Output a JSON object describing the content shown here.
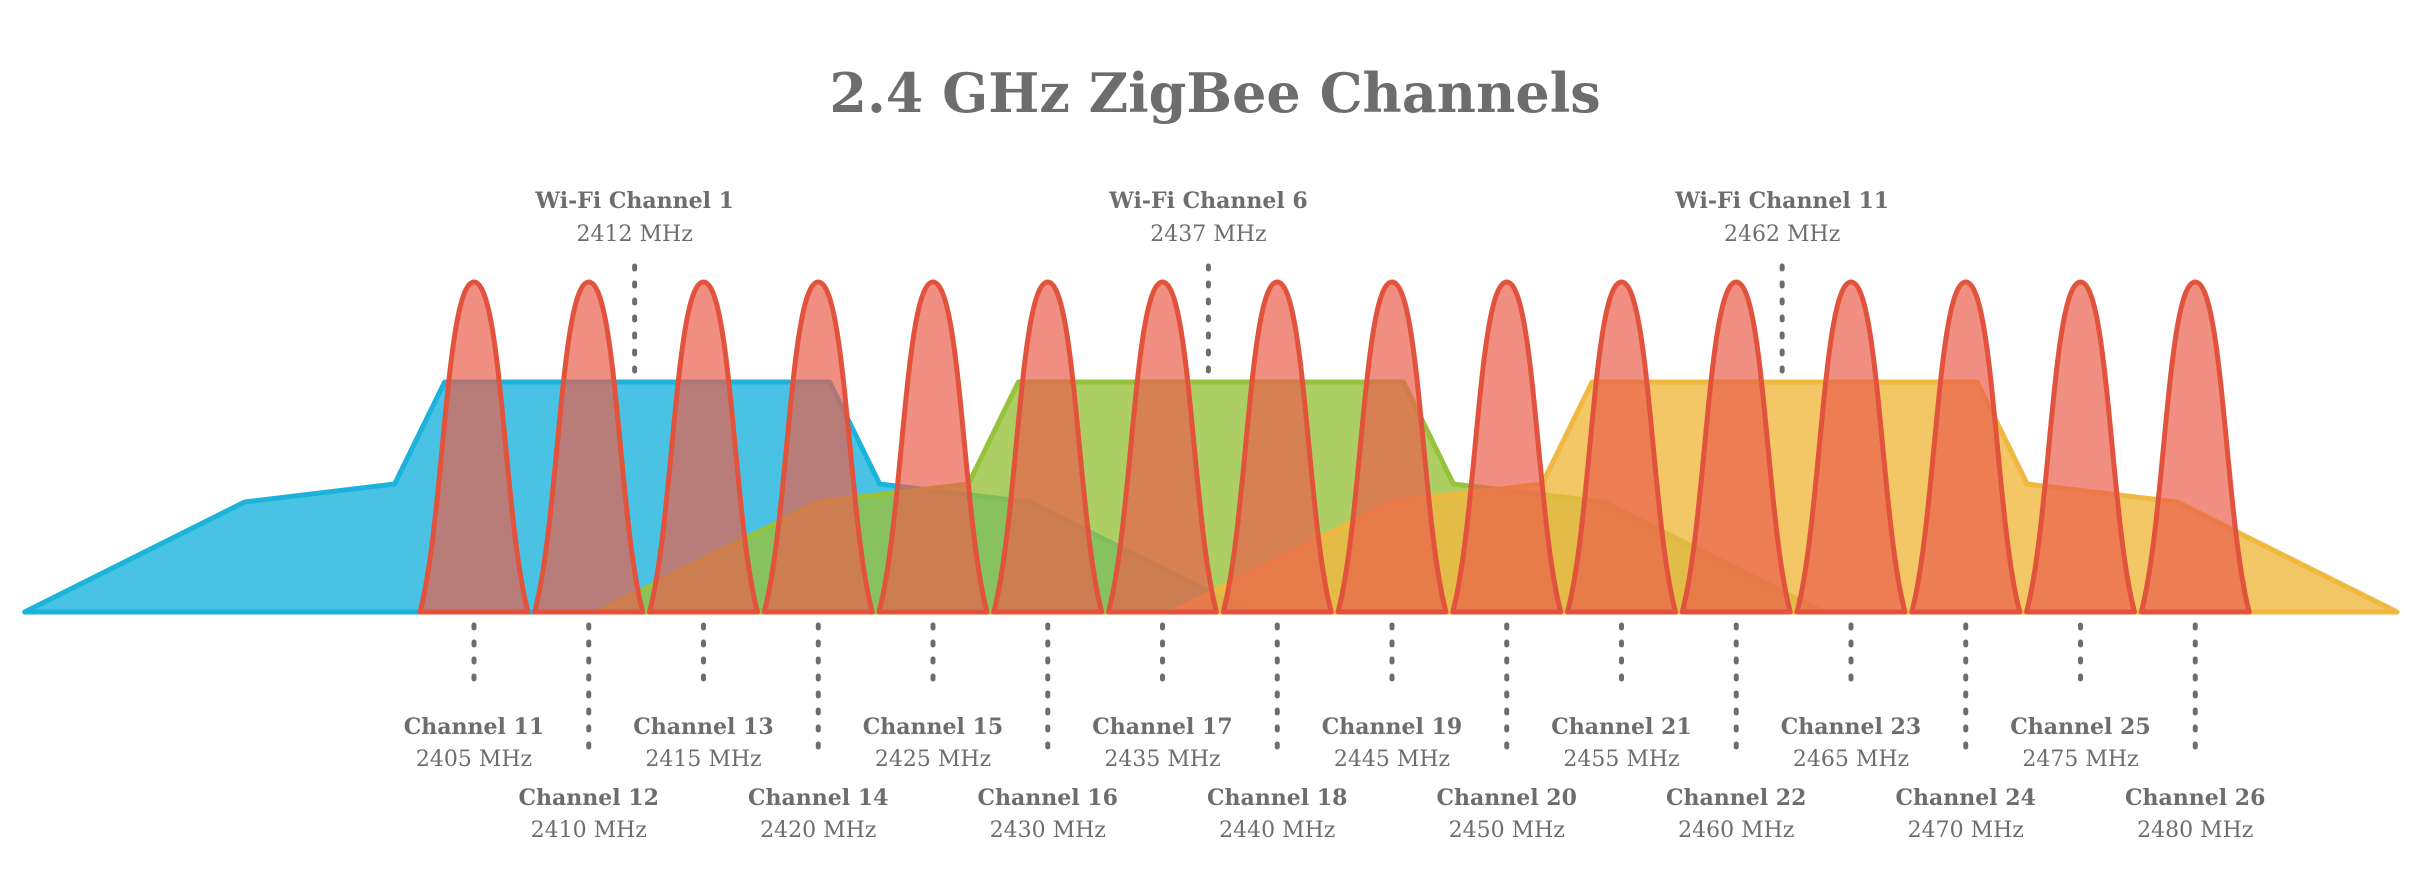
{
  "title": "2.4 GHz ZigBee Channels",
  "colors": {
    "zigbee_fill": "#e9604b",
    "zigbee_stroke": "#e2533e",
    "wifi_1": "#1bb3dc",
    "wifi_6": "#97c23c",
    "wifi_11": "#f0b840",
    "text": "#6d6d6d"
  },
  "wifi_channels": [
    {
      "name": "Wi-Fi Channel 1",
      "freq_label": "2412 MHz",
      "freq": 2412,
      "color_key": "wifi_1"
    },
    {
      "name": "Wi-Fi Channel 6",
      "freq_label": "2437 MHz",
      "freq": 2437,
      "color_key": "wifi_6"
    },
    {
      "name": "Wi-Fi Channel 11",
      "freq_label": "2462 MHz",
      "freq": 2462,
      "color_key": "wifi_11"
    }
  ],
  "zigbee_channels": [
    {
      "name": "Channel 11",
      "freq_label": "2405 MHz",
      "freq": 2405
    },
    {
      "name": "Channel 12",
      "freq_label": "2410 MHz",
      "freq": 2410
    },
    {
      "name": "Channel 13",
      "freq_label": "2415 MHz",
      "freq": 2415
    },
    {
      "name": "Channel 14",
      "freq_label": "2420 MHz",
      "freq": 2420
    },
    {
      "name": "Channel 15",
      "freq_label": "2425 MHz",
      "freq": 2425
    },
    {
      "name": "Channel 16",
      "freq_label": "2430 MHz",
      "freq": 2430
    },
    {
      "name": "Channel 17",
      "freq_label": "2435 MHz",
      "freq": 2435
    },
    {
      "name": "Channel 18",
      "freq_label": "2440 MHz",
      "freq": 2440
    },
    {
      "name": "Channel 19",
      "freq_label": "2445 MHz",
      "freq": 2445
    },
    {
      "name": "Channel 20",
      "freq_label": "2450 MHz",
      "freq": 2450
    },
    {
      "name": "Channel 21",
      "freq_label": "2455 MHz",
      "freq": 2455
    },
    {
      "name": "Channel 22",
      "freq_label": "2460 MHz",
      "freq": 2460
    },
    {
      "name": "Channel 23",
      "freq_label": "2465 MHz",
      "freq": 2465
    },
    {
      "name": "Channel 24",
      "freq_label": "2470 MHz",
      "freq": 2470
    },
    {
      "name": "Channel 25",
      "freq_label": "2475 MHz",
      "freq": 2475
    },
    {
      "name": "Channel 26",
      "freq_label": "2480 MHz",
      "freq": 2480
    }
  ]
}
